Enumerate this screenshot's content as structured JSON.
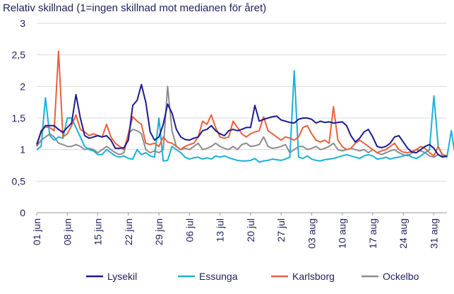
{
  "chart_data": {
    "type": "line",
    "title": "Relativ skillnad (1=ingen skillnad mot medianen för året)",
    "xlabel": "",
    "ylabel": "",
    "ylim": [
      0,
      3
    ],
    "y_ticks": [
      "0",
      "0,5",
      "1",
      "1,5",
      "2",
      "2,5",
      "3"
    ],
    "x_ticks": [
      "01 jun",
      "08 jun",
      "15 jun",
      "22 jun",
      "29 jun",
      "06 jul",
      "13 jul",
      "20 jul",
      "27 jul",
      "03 aug",
      "10 aug",
      "17 aug",
      "24 aug",
      "31 aug"
    ],
    "grid": "horizontal",
    "legend_position": "bottom",
    "x_start": "2023-06-01",
    "x_end": "2023-08-31",
    "series": [
      {
        "name": "Lysekil",
        "color": "#1b1b8f",
        "values": [
          1.08,
          1.28,
          1.38,
          1.38,
          1.38,
          1.32,
          1.27,
          1.35,
          1.42,
          1.87,
          1.5,
          1.22,
          1.18,
          1.2,
          1.22,
          1.2,
          1.22,
          1.15,
          1.02,
          1.02,
          1.03,
          1.15,
          1.7,
          1.78,
          2.03,
          1.75,
          1.28,
          1.15,
          1.2,
          1.4,
          1.72,
          1.58,
          1.32,
          1.2,
          1.16,
          1.15,
          1.18,
          1.2,
          1.3,
          1.32,
          1.38,
          1.3,
          1.25,
          1.22,
          1.3,
          1.32,
          1.3,
          1.32,
          1.35,
          1.35,
          1.7,
          1.45,
          1.48,
          1.5,
          1.52,
          1.53,
          1.47,
          1.45,
          1.43,
          1.42,
          1.48,
          1.5,
          1.5,
          1.48,
          1.42,
          1.45,
          1.43,
          1.44,
          1.42,
          1.43,
          1.44,
          1.38,
          1.22,
          1.12,
          1.18,
          1.28,
          1.32,
          1.2,
          1.05,
          1.03,
          1.05,
          1.1,
          1.2,
          1.22,
          1.12,
          1.02,
          0.96,
          0.95,
          1.0,
          1.05,
          1.08,
          1.02,
          0.92,
          0.88,
          0.9
        ]
      },
      {
        "name": "Essunga",
        "color": "#1ab0d8",
        "values": [
          1.0,
          1.05,
          1.82,
          1.22,
          1.15,
          1.2,
          1.18,
          1.5,
          1.5,
          1.35,
          1.2,
          1.05,
          1.0,
          0.98,
          0.92,
          0.92,
          1.0,
          0.95,
          0.9,
          0.88,
          0.9,
          0.86,
          0.85,
          1.0,
          0.92,
          0.95,
          0.9,
          0.88,
          1.5,
          0.82,
          0.83,
          1.05,
          1.0,
          0.95,
          0.88,
          0.85,
          0.87,
          0.88,
          0.85,
          0.87,
          0.85,
          0.9,
          0.88,
          0.9,
          0.87,
          0.85,
          0.83,
          0.82,
          0.82,
          0.83,
          0.86,
          0.8,
          0.82,
          0.83,
          0.85,
          0.84,
          0.83,
          0.85,
          0.88,
          2.25,
          0.88,
          0.86,
          0.9,
          0.85,
          0.83,
          0.82,
          0.84,
          0.85,
          0.86,
          0.88,
          0.9,
          0.92,
          0.9,
          0.88,
          0.86,
          0.9,
          0.92,
          0.9,
          0.85,
          0.86,
          0.88,
          0.85,
          0.87,
          0.88,
          0.9,
          0.92,
          0.88,
          0.86,
          0.9,
          0.95,
          1.0,
          1.85,
          1.05,
          0.9,
          0.88,
          1.3,
          0.85
        ]
      },
      {
        "name": "Karlsborg",
        "color": "#e8613c",
        "values": [
          1.05,
          1.3,
          1.36,
          1.35,
          1.3,
          2.56,
          1.2,
          1.25,
          1.38,
          1.55,
          1.32,
          1.28,
          1.22,
          1.25,
          1.22,
          1.2,
          1.4,
          1.2,
          1.1,
          1.05,
          1.0,
          1.25,
          1.52,
          1.45,
          1.4,
          1.1,
          1.08,
          1.1,
          1.05,
          1.2,
          1.12,
          1.1,
          1.05,
          1.0,
          1.05,
          1.08,
          1.1,
          1.2,
          1.45,
          1.4,
          1.55,
          1.35,
          1.2,
          1.18,
          1.2,
          1.45,
          1.35,
          1.25,
          1.2,
          1.25,
          1.28,
          1.3,
          1.52,
          1.3,
          1.25,
          1.2,
          1.15,
          1.2,
          1.18,
          1.15,
          1.2,
          1.35,
          1.38,
          1.25,
          1.15,
          1.12,
          1.15,
          1.1,
          1.68,
          1.15,
          1.05,
          1.0,
          1.02,
          1.1,
          1.15,
          1.1,
          1.05,
          1.0,
          0.95,
          0.98,
          1.0,
          1.05,
          1.1,
          1.0,
          0.96,
          0.95,
          0.97,
          1.0,
          1.05,
          1.02,
          0.95,
          0.9,
          1.05,
          0.92,
          0.9
        ]
      },
      {
        "name": "Ockelbo",
        "color": "#8c8c8c",
        "values": [
          1.05,
          1.15,
          1.2,
          1.25,
          1.2,
          1.1,
          1.08,
          1.05,
          1.05,
          1.08,
          1.05,
          1.0,
          1.02,
          1.0,
          0.95,
          1.0,
          1.05,
          1.0,
          0.95,
          0.92,
          0.95,
          1.25,
          1.32,
          1.3,
          1.25,
          1.0,
          0.95,
          0.98,
          0.95,
          1.0,
          2.0,
          1.3,
          1.05,
          1.0,
          1.02,
          1.0,
          1.05,
          1.1,
          1.0,
          1.02,
          1.05,
          1.1,
          1.05,
          1.02,
          1.0,
          1.05,
          1.0,
          1.08,
          1.1,
          1.05,
          1.06,
          1.08,
          1.2,
          1.05,
          1.02,
          1.03,
          1.05,
          1.08,
          0.95,
          1.0,
          1.05,
          1.05,
          1.0,
          1.02,
          1.05,
          1.0,
          1.02,
          1.05,
          1.1,
          1.0,
          0.98,
          1.0,
          1.02,
          1.0,
          0.98,
          1.0,
          0.95,
          1.0,
          0.95,
          0.92,
          0.95,
          0.98,
          1.0,
          0.95,
          0.92,
          0.9,
          0.95,
          1.0,
          0.98,
          0.95,
          0.9,
          0.88,
          0.92,
          0.88
        ]
      }
    ]
  }
}
